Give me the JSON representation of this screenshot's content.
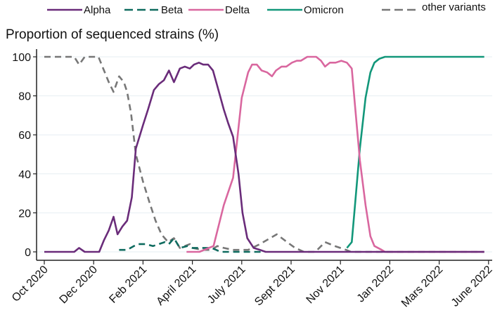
{
  "chart_data": {
    "type": "line",
    "title": "",
    "ylabel": "Proportion of sequenced strains (%)",
    "xlabel": "",
    "ylim": [
      0,
      100
    ],
    "yticks": [
      0,
      20,
      40,
      60,
      80,
      100
    ],
    "xticks": [
      {
        "label": "Oct 2020",
        "date": "2020-10-01"
      },
      {
        "label": "Dec 2020",
        "date": "2020-12-01"
      },
      {
        "label": "Feb 2021",
        "date": "2021-02-01"
      },
      {
        "label": "April 2021",
        "date": "2021-04-01"
      },
      {
        "label": "July 2021",
        "date": "2021-07-01"
      },
      {
        "label": "Sept 2021",
        "date": "2021-09-01"
      },
      {
        "label": "Nov 2021",
        "date": "2021-11-01"
      },
      {
        "label": "Jan 2022",
        "date": "2022-01-01"
      },
      {
        "label": "Mars 2022",
        "date": "2022-03-01"
      },
      {
        "label": "June 2022",
        "date": "2022-06-01"
      }
    ],
    "grid": true,
    "legend_position": "top",
    "series": [
      {
        "name": "Alpha",
        "color": "#6a2c7a",
        "dashed": false,
        "points": [
          [
            "2020-10-01",
            0
          ],
          [
            "2020-11-07",
            0
          ],
          [
            "2020-11-13",
            2
          ],
          [
            "2020-11-20",
            0
          ],
          [
            "2020-12-08",
            0
          ],
          [
            "2020-12-14",
            6
          ],
          [
            "2020-12-20",
            11
          ],
          [
            "2020-12-26",
            18
          ],
          [
            "2020-12-31",
            9
          ],
          [
            "2021-01-06",
            13
          ],
          [
            "2021-01-12",
            16
          ],
          [
            "2021-01-18",
            28
          ],
          [
            "2021-01-23",
            53
          ],
          [
            "2021-02-01",
            65
          ],
          [
            "2021-02-07",
            73
          ],
          [
            "2021-02-14",
            83
          ],
          [
            "2021-02-20",
            86
          ],
          [
            "2021-02-26",
            88
          ],
          [
            "2021-03-04",
            93
          ],
          [
            "2021-03-10",
            87
          ],
          [
            "2021-03-17",
            94
          ],
          [
            "2021-03-23",
            95
          ],
          [
            "2021-03-29",
            94
          ],
          [
            "2021-04-04",
            96
          ],
          [
            "2021-04-13",
            97
          ],
          [
            "2021-04-21",
            96
          ],
          [
            "2021-04-30",
            96
          ],
          [
            "2021-05-09",
            93
          ],
          [
            "2021-05-17",
            85
          ],
          [
            "2021-05-29",
            73
          ],
          [
            "2021-06-06",
            66
          ],
          [
            "2021-06-15",
            59
          ],
          [
            "2021-06-25",
            40
          ],
          [
            "2021-07-02",
            20
          ],
          [
            "2021-07-08",
            7
          ],
          [
            "2021-07-16",
            2
          ],
          [
            "2021-07-24",
            1
          ],
          [
            "2021-07-31",
            0
          ],
          [
            "2022-05-24",
            0
          ]
        ]
      },
      {
        "name": "Beta",
        "color": "#0f6b5f",
        "dashed": true,
        "points": [
          [
            "2021-01-02",
            1
          ],
          [
            "2021-01-12",
            1
          ],
          [
            "2021-01-25",
            4
          ],
          [
            "2021-02-04",
            4
          ],
          [
            "2021-02-13",
            3
          ],
          [
            "2021-02-27",
            5
          ],
          [
            "2021-03-04",
            4
          ],
          [
            "2021-03-10",
            7
          ],
          [
            "2021-03-17",
            2
          ],
          [
            "2021-03-26",
            3
          ],
          [
            "2021-04-01",
            2
          ],
          [
            "2021-05-06",
            2
          ],
          [
            "2021-05-15",
            1
          ],
          [
            "2021-05-23",
            0
          ],
          [
            "2021-07-26",
            0
          ]
        ]
      },
      {
        "name": "Delta",
        "color": "#d9679f",
        "dashed": false,
        "points": [
          [
            "2021-03-25",
            0
          ],
          [
            "2021-04-14",
            0
          ],
          [
            "2021-05-10",
            3
          ],
          [
            "2021-05-29",
            24
          ],
          [
            "2021-06-15",
            38
          ],
          [
            "2021-07-01",
            79
          ],
          [
            "2021-07-09",
            92
          ],
          [
            "2021-07-14",
            96
          ],
          [
            "2021-07-20",
            96
          ],
          [
            "2021-07-26",
            93
          ],
          [
            "2021-08-02",
            92
          ],
          [
            "2021-08-08",
            90
          ],
          [
            "2021-08-13",
            93
          ],
          [
            "2021-08-20",
            95
          ],
          [
            "2021-08-26",
            95
          ],
          [
            "2021-09-02",
            97
          ],
          [
            "2021-09-08",
            98
          ],
          [
            "2021-09-13",
            98
          ],
          [
            "2021-09-21",
            100
          ],
          [
            "2021-10-02",
            100
          ],
          [
            "2021-10-08",
            98
          ],
          [
            "2021-10-13",
            95
          ],
          [
            "2021-10-19",
            97
          ],
          [
            "2021-10-26",
            97
          ],
          [
            "2021-11-02",
            98
          ],
          [
            "2021-11-09",
            97
          ],
          [
            "2021-11-15",
            94
          ],
          [
            "2021-11-19",
            75
          ],
          [
            "2021-11-25",
            47
          ],
          [
            "2021-12-02",
            24
          ],
          [
            "2021-12-08",
            8
          ],
          [
            "2021-12-13",
            3
          ],
          [
            "2021-12-22",
            1
          ],
          [
            "2021-12-26",
            0
          ],
          [
            "2022-05-24",
            0
          ]
        ]
      },
      {
        "name": "Omicron",
        "color": "#12977a",
        "dashed": false,
        "points": [
          [
            "2021-11-09",
            2
          ],
          [
            "2021-11-15",
            5
          ],
          [
            "2021-11-19",
            24
          ],
          [
            "2021-11-25",
            53
          ],
          [
            "2021-12-02",
            79
          ],
          [
            "2021-12-08",
            92
          ],
          [
            "2021-12-13",
            97
          ],
          [
            "2021-12-19",
            99
          ],
          [
            "2021-12-26",
            100
          ],
          [
            "2022-05-24",
            100
          ]
        ]
      },
      {
        "name": "other variants",
        "color": "#777777",
        "dashed": true,
        "points": [
          [
            "2020-10-01",
            100
          ],
          [
            "2020-11-07",
            100
          ],
          [
            "2020-11-13",
            96
          ],
          [
            "2020-11-20",
            100
          ],
          [
            "2020-12-07",
            100
          ],
          [
            "2020-12-13",
            94
          ],
          [
            "2020-12-20",
            87
          ],
          [
            "2020-12-26",
            82
          ],
          [
            "2021-01-02",
            90
          ],
          [
            "2021-01-08",
            87
          ],
          [
            "2021-01-12",
            82
          ],
          [
            "2021-01-17",
            71
          ],
          [
            "2021-01-23",
            50
          ],
          [
            "2021-02-01",
            36
          ],
          [
            "2021-02-09",
            25
          ],
          [
            "2021-02-16",
            16
          ],
          [
            "2021-02-23",
            9
          ],
          [
            "2021-03-03",
            5
          ],
          [
            "2021-03-10",
            7
          ],
          [
            "2021-03-17",
            2
          ],
          [
            "2021-03-29",
            4
          ],
          [
            "2021-04-01",
            2
          ],
          [
            "2021-04-19",
            1
          ],
          [
            "2021-05-06",
            1
          ],
          [
            "2021-05-17",
            3
          ],
          [
            "2021-05-29",
            2
          ],
          [
            "2021-06-15",
            1
          ],
          [
            "2021-07-09",
            1
          ],
          [
            "2021-07-24",
            4
          ],
          [
            "2021-08-14",
            9
          ],
          [
            "2021-08-27",
            5
          ],
          [
            "2021-09-06",
            2
          ],
          [
            "2021-09-17",
            0
          ],
          [
            "2021-10-01",
            0
          ],
          [
            "2021-10-13",
            5
          ],
          [
            "2021-10-25",
            3
          ],
          [
            "2021-11-08",
            1
          ],
          [
            "2021-11-14",
            0
          ],
          [
            "2022-05-24",
            0
          ]
        ]
      }
    ]
  }
}
